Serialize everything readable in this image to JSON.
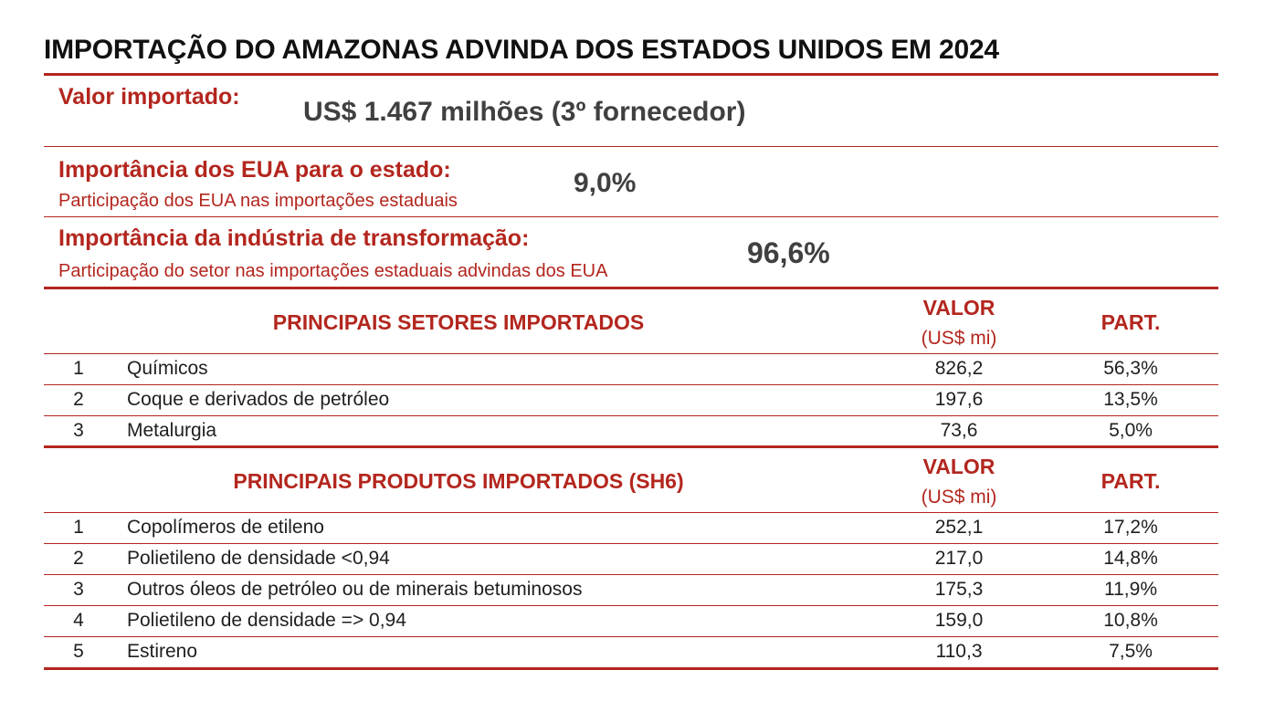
{
  "title": "IMPORTAÇÃO DO AMAZONAS ADVINDA DOS ESTADOS UNIDOS EM 2024",
  "summary": {
    "valor_label": "Valor importado:",
    "valor_value": "US$ 1.467 milhões (3º fornecedor)",
    "eua_label": "Importância dos EUA para o estado:",
    "eua_sub": "Participação dos EUA nas importações estaduais",
    "eua_value": "9,0%",
    "ind_label": "Importância da indústria de transformação:",
    "ind_sub": "Participação do setor nas importações estaduais advindas dos EUA",
    "ind_value": "96,6%"
  },
  "sectors": {
    "heading": "PRINCIPAIS SETORES IMPORTADOS",
    "col_valor": "VALOR",
    "col_unit": "(US$ mi)",
    "col_part": "PART.",
    "rows": [
      {
        "rank": "1",
        "name": "Químicos",
        "valor": "826,2",
        "part": "56,3%"
      },
      {
        "rank": "2",
        "name": "Coque e derivados de petróleo",
        "valor": "197,6",
        "part": "13,5%"
      },
      {
        "rank": "3",
        "name": "Metalurgia",
        "valor": "73,6",
        "part": "5,0%"
      }
    ]
  },
  "products": {
    "heading": "PRINCIPAIS PRODUTOS IMPORTADOS (SH6)",
    "col_valor": "VALOR",
    "col_unit": "(US$ mi)",
    "col_part": "PART.",
    "rows": [
      {
        "rank": "1",
        "name": "Copolímeros de etileno",
        "valor": "252,1",
        "part": "17,2%"
      },
      {
        "rank": "2",
        "name": "Polietileno de densidade <0,94",
        "valor": "217,0",
        "part": "14,8%"
      },
      {
        "rank": "3",
        "name": "Outros óleos de petróleo ou de minerais betuminosos",
        "valor": "175,3",
        "part": "11,9%"
      },
      {
        "rank": "4",
        "name": "Polietileno de densidade => 0,94",
        "valor": "159,0",
        "part": "10,8%"
      },
      {
        "rank": "5",
        "name": "Estireno",
        "valor": "110,3",
        "part": "7,5%"
      }
    ]
  },
  "colors": {
    "accent": "#b3261e",
    "text": "#1f1f1f",
    "value": "#404040"
  }
}
